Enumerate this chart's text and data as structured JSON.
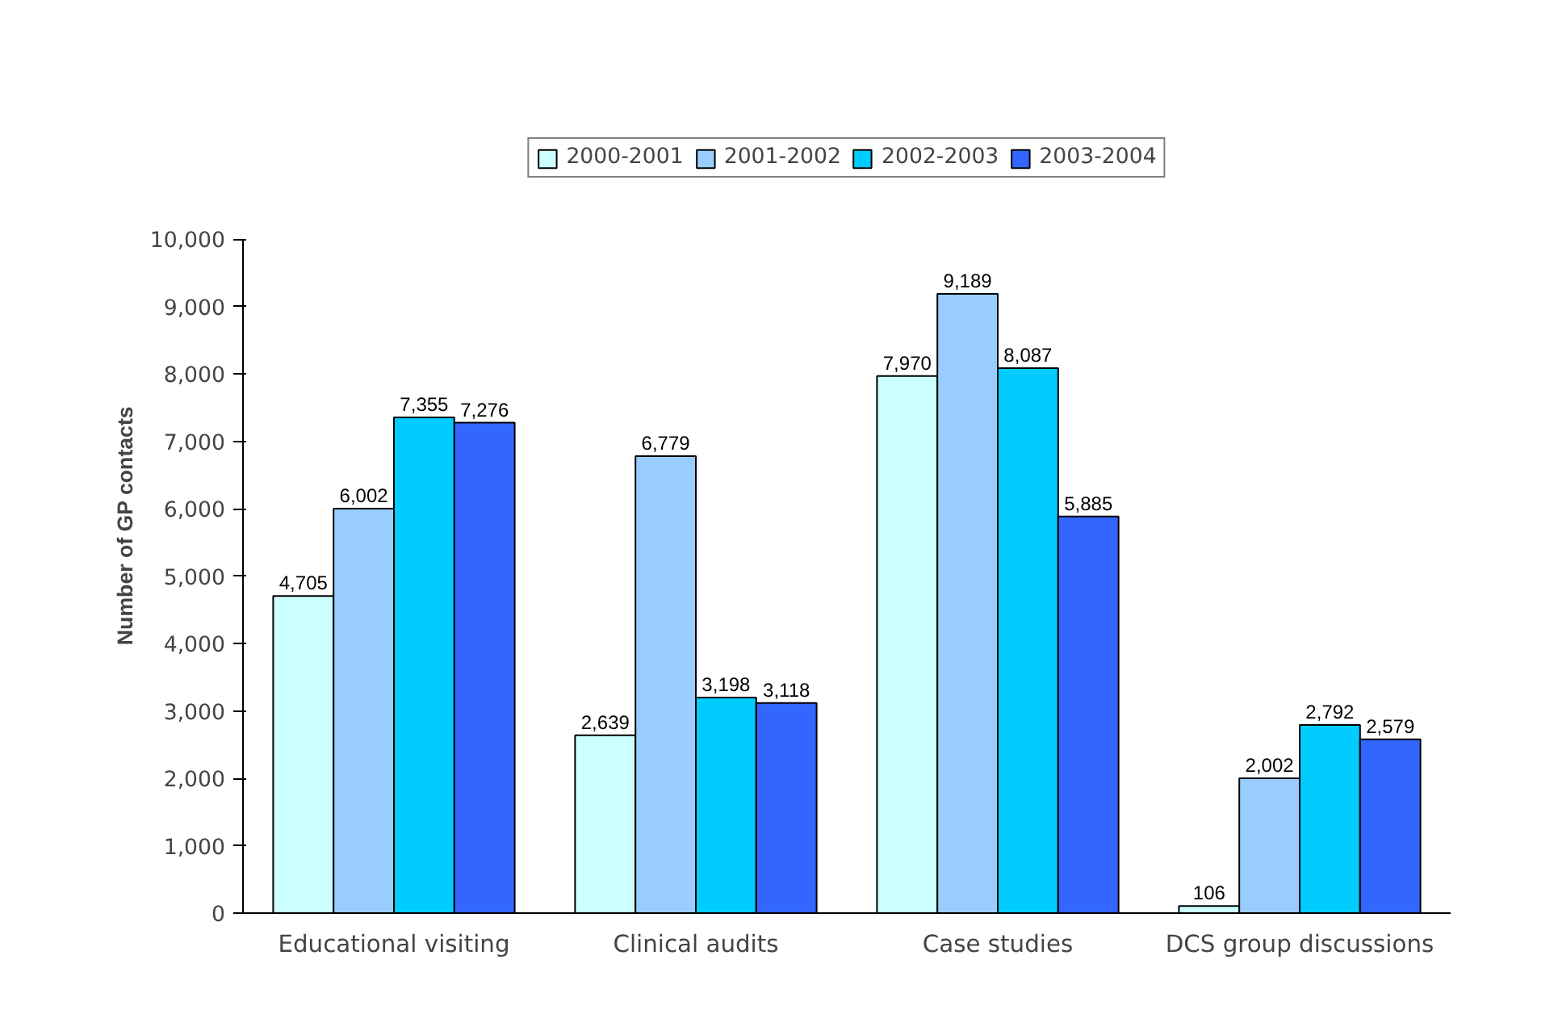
{
  "chart_data": {
    "type": "bar",
    "ylabel": "Number of GP contacts",
    "categories": [
      "Educational visiting",
      "Clinical audits",
      "Case studies",
      "DCS group discussions"
    ],
    "series": [
      {
        "name": "2000-2001",
        "color": "#ccffff",
        "values": [
          4705,
          2639,
          7970,
          106
        ],
        "value_labels": [
          "4,705",
          "2,639",
          "7,970",
          "106"
        ]
      },
      {
        "name": "2001-2002",
        "color": "#99ccff",
        "values": [
          6002,
          6779,
          9189,
          2002
        ],
        "value_labels": [
          "6,002",
          "6,779",
          "9,189",
          "2,002"
        ]
      },
      {
        "name": "2002-2003",
        "color": "#00ccff",
        "values": [
          7355,
          3198,
          8087,
          2792
        ],
        "value_labels": [
          "7,355",
          "3,198",
          "8,087",
          "2,792"
        ]
      },
      {
        "name": "2003-2004",
        "color": "#3366ff",
        "values": [
          7276,
          3118,
          5885,
          2579
        ],
        "value_labels": [
          "7,276",
          "3,118",
          "5,885",
          "2,579"
        ]
      }
    ],
    "ylim": [
      0,
      10000
    ],
    "yticks": [
      {
        "value": 0,
        "label": "0"
      },
      {
        "value": 1000,
        "label": "1,000"
      },
      {
        "value": 2000,
        "label": "2,000"
      },
      {
        "value": 3000,
        "label": "3,000"
      },
      {
        "value": 4000,
        "label": "4,000"
      },
      {
        "value": 5000,
        "label": "5,000"
      },
      {
        "value": 6000,
        "label": "6,000"
      },
      {
        "value": 7000,
        "label": "7,000"
      },
      {
        "value": 8000,
        "label": "8,000"
      },
      {
        "value": 9000,
        "label": "9,000"
      },
      {
        "value": 10000,
        "label": "10,000"
      }
    ],
    "legend": "top",
    "grid": false
  }
}
